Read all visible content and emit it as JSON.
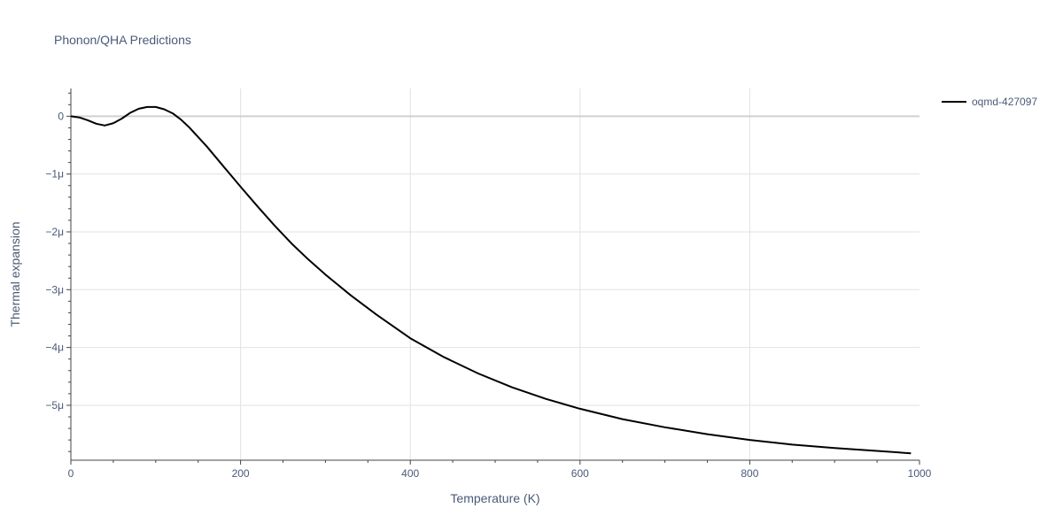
{
  "chart_data": {
    "type": "line",
    "title": "Phonon/QHA Predictions",
    "xlabel": "Temperature (K)",
    "ylabel": "Thermal expansion",
    "xlim": [
      0,
      1000
    ],
    "ylim": [
      -5.95e-06,
      4.8e-07
    ],
    "x_ticks": [
      0,
      200,
      400,
      600,
      800,
      1000
    ],
    "x_tick_labels": [
      "0",
      "200",
      "400",
      "600",
      "800",
      "1000"
    ],
    "y_ticks": [
      0,
      -1e-06,
      -2e-06,
      -3e-06,
      -4e-06,
      -5e-06
    ],
    "y_tick_labels": [
      "0",
      "−1μ",
      "−2μ",
      "−3μ",
      "−4μ",
      "−5μ"
    ],
    "grid": true,
    "legend_position": "top-right",
    "colors": {
      "series": "#000000",
      "text": "#4a5a78",
      "grid": "#e2e2e2"
    },
    "series": [
      {
        "name": "oqmd-427097",
        "x": [
          0,
          10,
          20,
          30,
          40,
          50,
          60,
          70,
          80,
          90,
          100,
          110,
          120,
          130,
          140,
          160,
          180,
          200,
          220,
          240,
          260,
          280,
          300,
          330,
          360,
          400,
          440,
          480,
          520,
          560,
          600,
          650,
          700,
          750,
          800,
          850,
          900,
          950,
          990
        ],
        "y": [
          0,
          -2e-08,
          -7e-08,
          -1.3e-07,
          -1.6e-07,
          -1.2e-07,
          -4e-08,
          6e-08,
          1.3e-07,
          1.6e-07,
          1.6e-07,
          1.2e-07,
          5e-08,
          -6e-08,
          -2e-07,
          -5.2e-07,
          -8.7e-07,
          -1.22e-06,
          -1.56e-06,
          -1.89e-06,
          -2.2e-06,
          -2.48e-06,
          -2.74e-06,
          -3.1e-06,
          -3.43e-06,
          -3.84e-06,
          -4.17e-06,
          -4.45e-06,
          -4.69e-06,
          -4.89e-06,
          -5.06e-06,
          -5.24e-06,
          -5.38e-06,
          -5.5e-06,
          -5.6e-06,
          -5.68e-06,
          -5.74e-06,
          -5.79e-06,
          -5.83e-06
        ]
      }
    ]
  }
}
